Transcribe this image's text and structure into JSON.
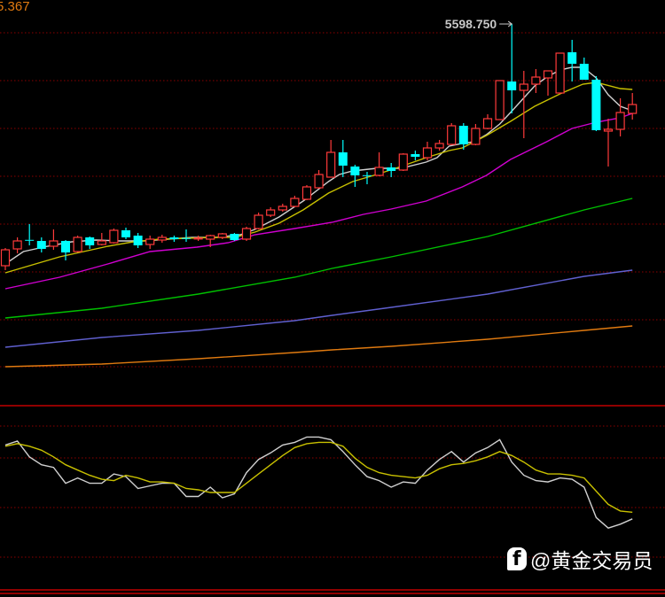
{
  "top_left_readout": "5.367",
  "watermark": {
    "text": "@黄金交易员",
    "icon": "social-logo-icon"
  },
  "colors": {
    "background": "#000000",
    "up": "#ff3a3a",
    "down": "#00ffff",
    "grid": "#8b0000",
    "divider": "#c00000",
    "ma_white": "#d0d0d0",
    "ma_yellow": "#c8c000",
    "ma_magenta": "#d000d0",
    "ma_green": "#00c000",
    "ma_blue": "#6060d0",
    "ma_orange": "#e07a10",
    "k": "#d0d0d0",
    "d": "#c8c000",
    "readout": "#e07a10"
  },
  "chart_data": [
    {
      "type": "candlestick",
      "title": "",
      "grid": true,
      "annotations": [
        {
          "text": "5598.750",
          "candle_index": 42,
          "marks": "high"
        }
      ],
      "candles": [
        [
          4234,
          4324,
          4334,
          4209
        ],
        [
          4329,
          4374,
          4394,
          4304
        ],
        [
          4380,
          4378,
          4469,
          4349
        ],
        [
          4374,
          4329,
          4394,
          4309
        ],
        [
          4344,
          4374,
          4439,
          4324
        ],
        [
          4374,
          4309,
          4379,
          4264
        ],
        [
          4314,
          4394,
          4404,
          4309
        ],
        [
          4394,
          4349,
          4399,
          4329
        ],
        [
          4354,
          4374,
          4419,
          4349
        ],
        [
          4364,
          4434,
          4444,
          4359
        ],
        [
          4434,
          4394,
          4449,
          4384
        ],
        [
          4404,
          4349,
          4419,
          4334
        ],
        [
          4354,
          4384,
          4404,
          4329
        ],
        [
          4379,
          4394,
          4409,
          4364
        ],
        [
          4394,
          4384,
          4404,
          4369
        ],
        [
          4390,
          4388,
          4439,
          4369
        ],
        [
          4388,
          4390,
          4404,
          4374
        ],
        [
          4384,
          4404,
          4409,
          4339
        ],
        [
          4394,
          4414,
          4419,
          4384
        ],
        [
          4414,
          4379,
          4419,
          4374
        ],
        [
          4384,
          4444,
          4454,
          4374
        ],
        [
          4444,
          4519,
          4534,
          4439
        ],
        [
          4519,
          4549,
          4564,
          4509
        ],
        [
          4549,
          4569,
          4584,
          4539
        ],
        [
          4569,
          4614,
          4629,
          4564
        ],
        [
          4609,
          4679,
          4689,
          4604
        ],
        [
          4674,
          4749,
          4774,
          4669
        ],
        [
          4734,
          4874,
          4944,
          4734
        ],
        [
          4874,
          4799,
          4944,
          4734
        ],
        [
          4794,
          4744,
          4804,
          4679
        ],
        [
          4745,
          4743,
          4764,
          4694
        ],
        [
          4744,
          4789,
          4874,
          4739
        ],
        [
          4789,
          4769,
          4814,
          4734
        ],
        [
          4774,
          4864,
          4869,
          4769
        ],
        [
          4864,
          4849,
          4884,
          4829
        ],
        [
          4844,
          4899,
          4934,
          4829
        ],
        [
          4899,
          4924,
          4944,
          4884
        ],
        [
          4919,
          5024,
          5039,
          4914
        ],
        [
          5024,
          4919,
          5039,
          4889
        ],
        [
          4919,
          5009,
          5034,
          4914
        ],
        [
          5009,
          5064,
          5089,
          5004
        ],
        [
          5059,
          5279,
          5279,
          5059
        ],
        [
          5274,
          5224,
          5598.75,
          5094
        ],
        [
          5224,
          5259,
          5334,
          4954
        ],
        [
          5259,
          5299,
          5344,
          5209
        ],
        [
          5294,
          5334,
          5334,
          5194
        ],
        [
          5209,
          5434,
          5434,
          5204
        ],
        [
          5439,
          5374,
          5509,
          5274
        ],
        [
          5374,
          5284,
          5409,
          5284
        ],
        [
          5284,
          4999,
          5304,
          4994
        ],
        [
          4994,
          5004,
          5064,
          4794
        ],
        [
          5004,
          5099,
          5179,
          4964
        ],
        [
          5094,
          5144,
          5209,
          5059
        ]
      ],
      "candle_fields": [
        "open",
        "close",
        "high",
        "low"
      ],
      "moving_averages": [
        {
          "color": "ma_white",
          "x": [
            0,
            1.5,
            3.5,
            5.5,
            7.5,
            9.5,
            11.5,
            13.5,
            15.5,
            17.5,
            19.5,
            20.7,
            22.7,
            24.7,
            26.8,
            27.7,
            28.8,
            30.8,
            32.8,
            34.9,
            35.8,
            36.8,
            37.9,
            38.9,
            39.9,
            41,
            41.9,
            42.9,
            43.9,
            44.9,
            46,
            47,
            47.9,
            49,
            50,
            51,
            52
          ],
          "y": [
            4244,
            4314,
            4344,
            4369,
            4379,
            4374,
            4374,
            4384,
            4394,
            4394,
            4409,
            4439,
            4509,
            4599,
            4709,
            4749,
            4769,
            4784,
            4784,
            4819,
            4844,
            4909,
            4924,
            4934,
            4974,
            5034,
            5099,
            5174,
            5249,
            5299,
            5339,
            5354,
            5354,
            5294,
            5199,
            5134,
            5109
          ]
        },
        {
          "color": "ma_yellow",
          "x": [
            0,
            2.5,
            4.5,
            6.5,
            8.5,
            10.6,
            12.8,
            15,
            17.2,
            19,
            20.7,
            22.7,
            24.7,
            26.8,
            28.8,
            30.8,
            32.8,
            34.9,
            36.8,
            37.9,
            39.9,
            41.9,
            43.9,
            46,
            47.9,
            49,
            51,
            52
          ],
          "y": [
            4194,
            4244,
            4284,
            4314,
            4344,
            4369,
            4384,
            4389,
            4394,
            4394,
            4424,
            4474,
            4549,
            4644,
            4709,
            4749,
            4794,
            4844,
            4884,
            4899,
            4969,
            5049,
            5134,
            5204,
            5259,
            5269,
            5234,
            5229
          ]
        },
        {
          "color": "ma_magenta",
          "x": [
            0,
            4.5,
            8.5,
            12,
            15.9,
            18.5,
            20.7,
            24,
            27.1,
            29.7,
            32,
            34.9,
            37.9,
            39.9,
            41.9,
            44.9,
            47,
            49,
            51,
            52
          ],
          "y": [
            4104,
            4169,
            4244,
            4314,
            4339,
            4364,
            4409,
            4444,
            4479,
            4524,
            4554,
            4599,
            4679,
            4744,
            4834,
            4934,
            5009,
            5044,
            5069,
            5094
          ]
        },
        {
          "color": "ma_green",
          "x": [
            0,
            8,
            16,
            24,
            27.1,
            32,
            40,
            48,
            52
          ],
          "y": [
            3939,
            3994,
            4074,
            4169,
            4219,
            4284,
            4399,
            4549,
            4614
          ]
        },
        {
          "color": "ma_blue",
          "x": [
            0,
            8,
            16,
            24,
            27.1,
            32,
            40,
            48,
            52
          ],
          "y": [
            3774,
            3829,
            3869,
            3924,
            3954,
            3999,
            4074,
            4174,
            4209
          ]
        },
        {
          "color": "ma_orange",
          "x": [
            0,
            8,
            16,
            24,
            27.1,
            32,
            40,
            48,
            52
          ],
          "y": [
            3664,
            3679,
            3709,
            3744,
            3759,
            3779,
            3819,
            3869,
            3894
          ]
        }
      ]
    },
    {
      "type": "line",
      "title": "",
      "grid": true,
      "series": [
        {
          "color": "k",
          "values": [
            85,
            88,
            76,
            70,
            68,
            56,
            60,
            56,
            56,
            63,
            61,
            52,
            54,
            56,
            56,
            46,
            46,
            53,
            45,
            48,
            64,
            74,
            79,
            85,
            87,
            91,
            91,
            89,
            80,
            70,
            61,
            58,
            53,
            57,
            56,
            66,
            74,
            80,
            72,
            79,
            83,
            89,
            72,
            62,
            58,
            57,
            60,
            59,
            53,
            30,
            22,
            25,
            29
          ]
        },
        {
          "color": "d",
          "values": [
            84,
            86,
            84,
            81,
            76,
            70,
            66,
            62,
            59,
            58,
            62,
            60,
            57,
            57,
            56,
            52,
            51,
            49,
            49,
            49,
            56,
            63,
            70,
            77,
            83,
            86,
            87,
            87,
            84,
            75,
            68,
            64,
            62,
            61,
            60,
            62,
            67,
            70,
            71,
            73,
            76,
            80,
            77,
            72,
            66,
            63,
            63,
            62,
            60,
            50,
            40,
            35,
            34
          ]
        }
      ]
    }
  ]
}
